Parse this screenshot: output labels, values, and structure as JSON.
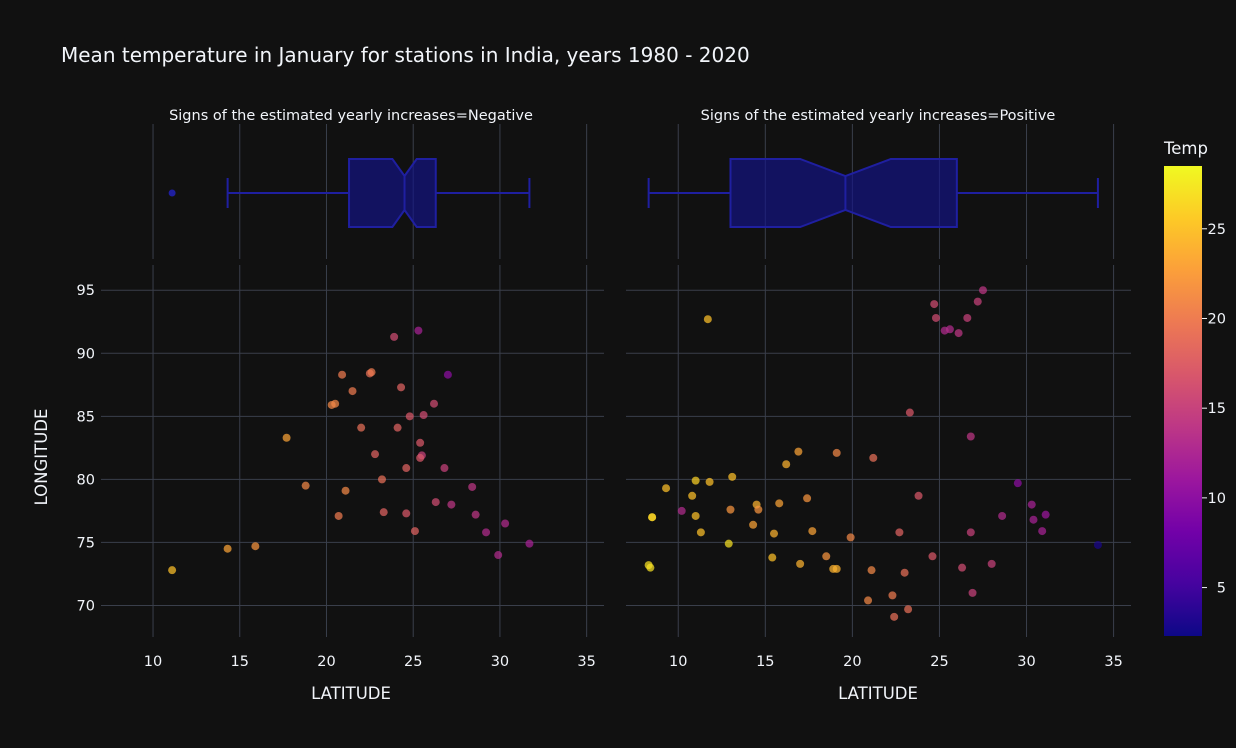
{
  "chart_data": {
    "type": "scatter",
    "title": "Mean temperature in January for stations in India, years 1980 - 2020",
    "xlabel": "LATITUDE",
    "ylabel": "LONGITUDE",
    "xlim": [
      7,
      36
    ],
    "ylim": [
      67.5,
      97
    ],
    "x_ticks": [
      10,
      15,
      20,
      25,
      30,
      35
    ],
    "y_ticks": [
      70,
      75,
      80,
      85,
      90,
      95
    ],
    "grid": true,
    "colorbar": {
      "title": "Temp",
      "range": [
        2.3,
        28.5
      ],
      "ticks": [
        5,
        10,
        15,
        20,
        25
      ],
      "colors": [
        "#0d0887",
        "#46039f",
        "#7201a8",
        "#9c179e",
        "#bd3786",
        "#d8576b",
        "#ed7953",
        "#fb9f3a",
        "#fdca26",
        "#f0f921"
      ]
    },
    "box_color": "#1f1fa0",
    "facets": [
      {
        "label": "Signs of the estimated yearly increases=Negative",
        "box": {
          "min": 14.3,
          "q1": 21.3,
          "median": 24.5,
          "q3": 26.3,
          "max": 31.7,
          "notch_low": 23.8,
          "notch_high": 25.2,
          "outliers": [
            11.1
          ]
        },
        "points": [
          {
            "x": 11.1,
            "y": 72.8,
            "t": 25
          },
          {
            "x": 14.3,
            "y": 74.5,
            "t": 23
          },
          {
            "x": 15.9,
            "y": 74.7,
            "t": 22
          },
          {
            "x": 17.7,
            "y": 83.3,
            "t": 23
          },
          {
            "x": 18.8,
            "y": 79.5,
            "t": 21
          },
          {
            "x": 20.3,
            "y": 85.9,
            "t": 21
          },
          {
            "x": 20.5,
            "y": 86.0,
            "t": 21
          },
          {
            "x": 20.9,
            "y": 88.3,
            "t": 20
          },
          {
            "x": 20.7,
            "y": 77.1,
            "t": 20
          },
          {
            "x": 21.1,
            "y": 79.1,
            "t": 21
          },
          {
            "x": 21.5,
            "y": 87.0,
            "t": 20
          },
          {
            "x": 22.0,
            "y": 84.1,
            "t": 19
          },
          {
            "x": 22.5,
            "y": 88.4,
            "t": 19
          },
          {
            "x": 22.6,
            "y": 88.5,
            "t": 20
          },
          {
            "x": 22.8,
            "y": 82.0,
            "t": 18
          },
          {
            "x": 23.2,
            "y": 80.0,
            "t": 19
          },
          {
            "x": 23.3,
            "y": 77.4,
            "t": 18
          },
          {
            "x": 23.9,
            "y": 91.3,
            "t": 16
          },
          {
            "x": 24.1,
            "y": 84.1,
            "t": 18
          },
          {
            "x": 24.3,
            "y": 87.3,
            "t": 18
          },
          {
            "x": 24.6,
            "y": 80.9,
            "t": 18
          },
          {
            "x": 24.6,
            "y": 77.3,
            "t": 17
          },
          {
            "x": 24.8,
            "y": 85.0,
            "t": 17
          },
          {
            "x": 25.1,
            "y": 75.9,
            "t": 18
          },
          {
            "x": 25.3,
            "y": 91.8,
            "t": 12
          },
          {
            "x": 25.4,
            "y": 82.9,
            "t": 17
          },
          {
            "x": 25.5,
            "y": 81.9,
            "t": 15
          },
          {
            "x": 25.4,
            "y": 81.7,
            "t": 17
          },
          {
            "x": 25.6,
            "y": 85.1,
            "t": 16
          },
          {
            "x": 26.2,
            "y": 86.0,
            "t": 16
          },
          {
            "x": 26.3,
            "y": 78.2,
            "t": 16
          },
          {
            "x": 26.8,
            "y": 80.9,
            "t": 15
          },
          {
            "x": 27.0,
            "y": 88.3,
            "t": 10
          },
          {
            "x": 27.2,
            "y": 78.0,
            "t": 14
          },
          {
            "x": 28.4,
            "y": 79.4,
            "t": 14
          },
          {
            "x": 28.6,
            "y": 77.2,
            "t": 14
          },
          {
            "x": 29.2,
            "y": 75.8,
            "t": 13
          },
          {
            "x": 29.9,
            "y": 74.0,
            "t": 13
          },
          {
            "x": 30.3,
            "y": 76.5,
            "t": 13
          },
          {
            "x": 31.7,
            "y": 74.9,
            "t": 12
          }
        ]
      },
      {
        "label": "Signs of the estimated yearly increases=Positive",
        "box": {
          "min": 8.3,
          "q1": 13.0,
          "median": 19.6,
          "q3": 26.0,
          "max": 34.1,
          "notch_low": 17.0,
          "notch_high": 22.2,
          "outliers": []
        },
        "points": [
          {
            "x": 8.3,
            "y": 73.2,
            "t": 27
          },
          {
            "x": 8.4,
            "y": 73.0,
            "t": 27
          },
          {
            "x": 8.5,
            "y": 77.0,
            "t": 27
          },
          {
            "x": 8.5,
            "y": 77.0,
            "t": 26
          },
          {
            "x": 9.3,
            "y": 79.3,
            "t": 25
          },
          {
            "x": 10.2,
            "y": 77.5,
            "t": 13
          },
          {
            "x": 10.8,
            "y": 78.7,
            "t": 25
          },
          {
            "x": 11.0,
            "y": 79.9,
            "t": 26
          },
          {
            "x": 11.0,
            "y": 77.1,
            "t": 25
          },
          {
            "x": 11.3,
            "y": 75.8,
            "t": 25
          },
          {
            "x": 11.7,
            "y": 92.7,
            "t": 25
          },
          {
            "x": 11.8,
            "y": 79.8,
            "t": 25
          },
          {
            "x": 12.9,
            "y": 74.9,
            "t": 27
          },
          {
            "x": 13.0,
            "y": 77.6,
            "t": 22
          },
          {
            "x": 13.1,
            "y": 80.2,
            "t": 25
          },
          {
            "x": 14.3,
            "y": 76.4,
            "t": 23
          },
          {
            "x": 14.5,
            "y": 78.0,
            "t": 24
          },
          {
            "x": 14.6,
            "y": 77.6,
            "t": 22
          },
          {
            "x": 15.4,
            "y": 73.8,
            "t": 25
          },
          {
            "x": 15.5,
            "y": 75.7,
            "t": 24
          },
          {
            "x": 15.8,
            "y": 78.1,
            "t": 23
          },
          {
            "x": 16.2,
            "y": 81.2,
            "t": 24
          },
          {
            "x": 16.9,
            "y": 82.2,
            "t": 23
          },
          {
            "x": 17.0,
            "y": 73.3,
            "t": 24
          },
          {
            "x": 17.4,
            "y": 78.5,
            "t": 22
          },
          {
            "x": 17.7,
            "y": 75.9,
            "t": 23
          },
          {
            "x": 18.5,
            "y": 73.9,
            "t": 22
          },
          {
            "x": 18.9,
            "y": 72.9,
            "t": 24
          },
          {
            "x": 19.1,
            "y": 72.9,
            "t": 24
          },
          {
            "x": 19.1,
            "y": 82.1,
            "t": 21
          },
          {
            "x": 19.9,
            "y": 75.4,
            "t": 21
          },
          {
            "x": 20.9,
            "y": 70.4,
            "t": 21
          },
          {
            "x": 21.1,
            "y": 72.8,
            "t": 21
          },
          {
            "x": 21.2,
            "y": 81.7,
            "t": 19
          },
          {
            "x": 22.3,
            "y": 70.8,
            "t": 20
          },
          {
            "x": 22.4,
            "y": 69.1,
            "t": 19
          },
          {
            "x": 22.7,
            "y": 75.8,
            "t": 18
          },
          {
            "x": 23.0,
            "y": 72.6,
            "t": 19
          },
          {
            "x": 23.2,
            "y": 69.7,
            "t": 19
          },
          {
            "x": 23.3,
            "y": 85.3,
            "t": 17
          },
          {
            "x": 23.8,
            "y": 78.7,
            "t": 17
          },
          {
            "x": 24.6,
            "y": 73.9,
            "t": 17
          },
          {
            "x": 24.7,
            "y": 93.9,
            "t": 16
          },
          {
            "x": 24.8,
            "y": 92.8,
            "t": 16
          },
          {
            "x": 25.3,
            "y": 91.8,
            "t": 13
          },
          {
            "x": 25.6,
            "y": 91.9,
            "t": 13
          },
          {
            "x": 26.1,
            "y": 91.6,
            "t": 14
          },
          {
            "x": 26.3,
            "y": 73.0,
            "t": 16
          },
          {
            "x": 26.6,
            "y": 92.8,
            "t": 15
          },
          {
            "x": 26.8,
            "y": 83.4,
            "t": 14
          },
          {
            "x": 26.8,
            "y": 75.8,
            "t": 15
          },
          {
            "x": 26.9,
            "y": 71.0,
            "t": 15
          },
          {
            "x": 27.2,
            "y": 94.1,
            "t": 15
          },
          {
            "x": 27.5,
            "y": 95.0,
            "t": 14
          },
          {
            "x": 28.0,
            "y": 73.3,
            "t": 15
          },
          {
            "x": 28.6,
            "y": 77.1,
            "t": 13
          },
          {
            "x": 29.5,
            "y": 79.7,
            "t": 10
          },
          {
            "x": 30.3,
            "y": 78.0,
            "t": 12
          },
          {
            "x": 30.4,
            "y": 76.8,
            "t": 12
          },
          {
            "x": 30.9,
            "y": 75.9,
            "t": 12
          },
          {
            "x": 31.1,
            "y": 77.2,
            "t": 11
          },
          {
            "x": 34.1,
            "y": 74.8,
            "t": 3
          }
        ]
      }
    ]
  }
}
